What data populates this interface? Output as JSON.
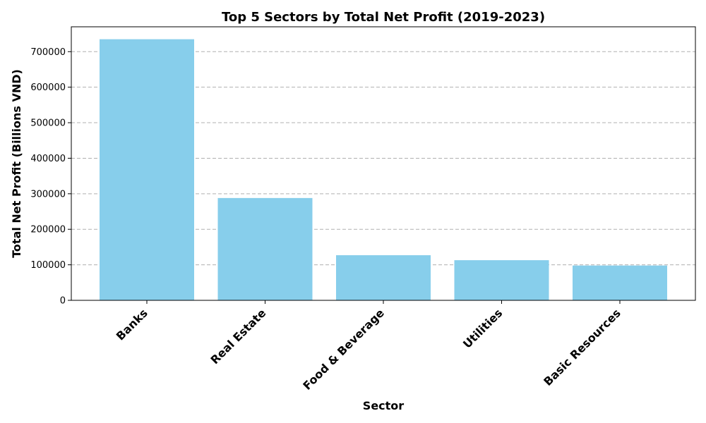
{
  "chart_data": {
    "type": "bar",
    "title": "Top 5 Sectors by Total Net Profit (2019-2023)",
    "xlabel": "Sector",
    "ylabel": "Total Net Profit (Billions VND)",
    "categories": [
      "Banks",
      "Real Estate",
      "Food & Beverage",
      "Utilities",
      "Basic Resources"
    ],
    "values": [
      735000,
      288000,
      127000,
      113000,
      98000
    ],
    "ylim": [
      0,
      770000
    ],
    "yticks": [
      0,
      100000,
      200000,
      300000,
      400000,
      500000,
      600000,
      700000
    ],
    "ytick_labels": [
      "0",
      "100000",
      "200000",
      "300000",
      "400000",
      "500000",
      "600000",
      "700000"
    ],
    "grid": "y-axis dashed",
    "bar_color": "#87CEEB",
    "legend": "none"
  }
}
